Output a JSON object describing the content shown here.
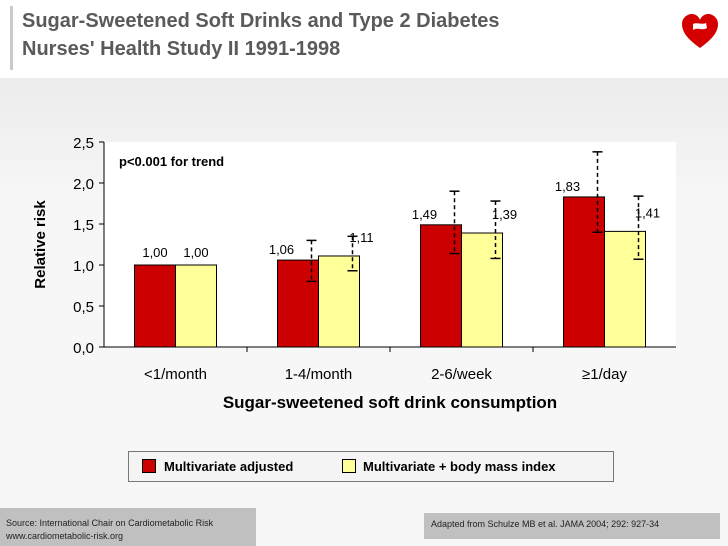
{
  "title": {
    "line1": "Sugar-Sweetened Soft Drinks and Type 2 Diabetes",
    "line2": "Nurses' Health Study II 1991-1998"
  },
  "logo_icon": "heart-logo-icon",
  "colors": {
    "series1": "#cc0000",
    "series2": "#ffff99",
    "title_text": "#5a5a5a",
    "footer_bg": "#c0c0c0"
  },
  "chart_data": {
    "type": "bar",
    "title": "Sugar-Sweetened Soft Drinks and Type 2 Diabetes",
    "xlabel": "Sugar-sweetened soft drink consumption",
    "ylabel": "Relative risk",
    "ylim": [
      0,
      2.5
    ],
    "yticks": [
      "0,0",
      "0,5",
      "1,0",
      "1,5",
      "2,0",
      "2,5"
    ],
    "categories": [
      "<1/month",
      "1-4/month",
      "2-6/week",
      "≥1/day"
    ],
    "annotation": "p<0.001 for trend",
    "series": [
      {
        "name": "Multivariate adjusted",
        "color": "#cc0000",
        "values": [
          1.0,
          1.06,
          1.49,
          1.83
        ],
        "labels": [
          "1,00",
          "1,06",
          "1,49",
          "1,83"
        ],
        "ci": [
          null,
          [
            0.8,
            1.3
          ],
          [
            1.14,
            1.9
          ],
          [
            1.4,
            2.38
          ]
        ]
      },
      {
        "name": "Multivariate + body mass index",
        "color": "#ffff99",
        "values": [
          1.0,
          1.11,
          1.39,
          1.41
        ],
        "labels": [
          "1,00",
          "1,11",
          "1,39",
          "1,41"
        ],
        "ci": [
          null,
          [
            0.93,
            1.35
          ],
          [
            1.08,
            1.78
          ],
          [
            1.07,
            1.84
          ]
        ]
      }
    ]
  },
  "footer": {
    "source_line1": "Source: International Chair on Cardiometabolic Risk",
    "source_line2": "www.cardiometabolic-risk.org",
    "citation": "Adapted from Schulze MB et al. JAMA 2004; 292: 927-34"
  }
}
